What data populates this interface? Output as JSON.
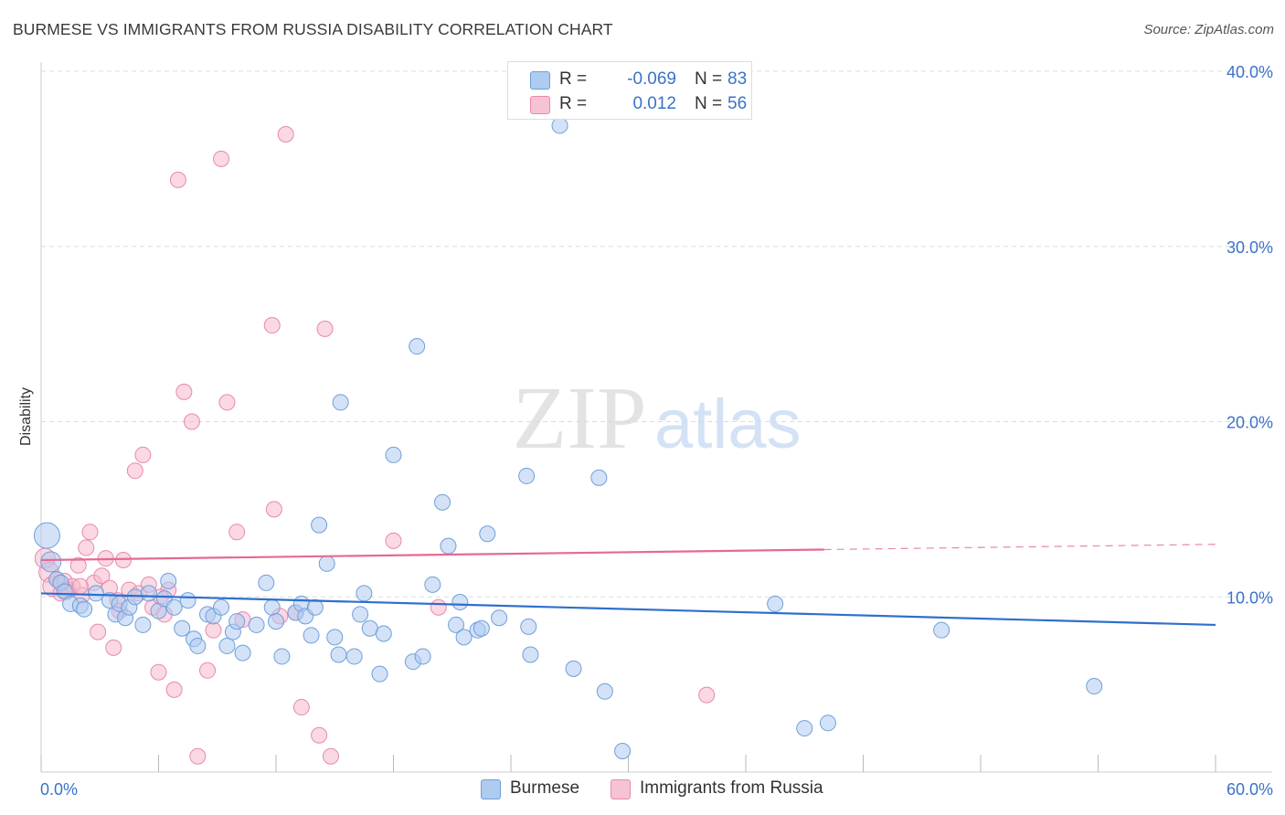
{
  "title": "BURMESE VS IMMIGRANTS FROM RUSSIA DISABILITY CORRELATION CHART",
  "source": "Source: ZipAtlas.com",
  "watermark": {
    "zip": "ZIP",
    "atlas": "atlas"
  },
  "colors": {
    "blue_fill": "#aecbf0",
    "blue_stroke": "#6f9fdb",
    "blue_line": "#2f6fcc",
    "pink_fill": "#f6b8cd",
    "pink_stroke": "#e88aaa",
    "pink_line": "#e46a93",
    "grid": "#dcdcdc",
    "axis_label": "#3b72c8"
  },
  "legend_top": {
    "rows": [
      {
        "series": "blue",
        "r_label": "R =",
        "r_value": "-0.069",
        "n_label": "N =",
        "n_value": "83"
      },
      {
        "series": "pink",
        "r_label": "R =",
        "r_value": "0.012",
        "n_label": "N =",
        "n_value": "56"
      }
    ]
  },
  "legend_bottom": {
    "items": [
      {
        "series": "blue",
        "label": "Burmese"
      },
      {
        "series": "pink",
        "label": "Immigrants from Russia"
      }
    ]
  },
  "chart_data": {
    "type": "scatter",
    "title": "BURMESE VS IMMIGRANTS FROM RUSSIA DISABILITY CORRELATION CHART",
    "xlabel": "",
    "ylabel": "Disability",
    "xlim": [
      0,
      60
    ],
    "ylim": [
      0,
      40
    ],
    "x_tick_labels": [
      "0.0%",
      "60.0%"
    ],
    "y_tick_labels": [
      "10.0%",
      "20.0%",
      "30.0%",
      "40.0%"
    ],
    "y_ticks": [
      10,
      20,
      30,
      40
    ],
    "x_minor_ticks": [
      0,
      6,
      12,
      18,
      24,
      30,
      36,
      42,
      48,
      54,
      60
    ],
    "grid": true,
    "series": [
      {
        "name": "Burmese",
        "color": "blue",
        "trend": {
          "x0": 0,
          "y0": 10.2,
          "x1": 60,
          "y1": 8.4,
          "dashed_from": null
        },
        "points": [
          [
            0.3,
            13.5,
            3
          ],
          [
            0.5,
            12.0,
            2
          ],
          [
            0.8,
            11.0,
            1
          ],
          [
            1.0,
            10.8,
            1
          ],
          [
            1.2,
            10.3,
            1
          ],
          [
            1.5,
            9.6,
            1
          ],
          [
            2.0,
            9.5,
            1
          ],
          [
            2.2,
            9.3,
            1
          ],
          [
            2.8,
            10.2,
            1
          ],
          [
            3.5,
            9.8,
            1
          ],
          [
            3.8,
            9.0,
            1
          ],
          [
            4.0,
            9.6,
            1
          ],
          [
            4.3,
            8.8,
            1
          ],
          [
            4.5,
            9.4,
            1
          ],
          [
            4.8,
            10.0,
            1
          ],
          [
            5.2,
            8.4,
            1
          ],
          [
            5.5,
            10.2,
            1
          ],
          [
            6.0,
            9.2,
            1
          ],
          [
            6.3,
            9.9,
            1
          ],
          [
            6.5,
            10.9,
            1
          ],
          [
            6.8,
            9.4,
            1
          ],
          [
            7.2,
            8.2,
            1
          ],
          [
            7.5,
            9.8,
            1
          ],
          [
            7.8,
            7.6,
            1
          ],
          [
            8.0,
            7.2,
            1
          ],
          [
            8.5,
            9.0,
            1
          ],
          [
            8.8,
            8.9,
            1
          ],
          [
            9.2,
            9.4,
            1
          ],
          [
            9.5,
            7.2,
            1
          ],
          [
            9.8,
            8.0,
            1
          ],
          [
            10.0,
            8.6,
            1
          ],
          [
            10.3,
            6.8,
            1
          ],
          [
            11.0,
            8.4,
            1
          ],
          [
            11.5,
            10.8,
            1
          ],
          [
            11.8,
            9.4,
            1
          ],
          [
            12.0,
            8.6,
            1
          ],
          [
            12.3,
            6.6,
            1
          ],
          [
            13.0,
            9.1,
            1
          ],
          [
            13.3,
            9.6,
            1
          ],
          [
            13.5,
            8.9,
            1
          ],
          [
            13.8,
            7.8,
            1
          ],
          [
            14.0,
            9.4,
            1
          ],
          [
            14.2,
            14.1,
            1
          ],
          [
            14.6,
            11.9,
            1
          ],
          [
            15.0,
            7.7,
            1
          ],
          [
            15.2,
            6.7,
            1
          ],
          [
            15.3,
            21.1,
            1
          ],
          [
            16.0,
            6.6,
            1
          ],
          [
            16.3,
            9.0,
            1
          ],
          [
            16.5,
            10.2,
            1
          ],
          [
            16.8,
            8.2,
            1
          ],
          [
            17.3,
            5.6,
            1
          ],
          [
            17.5,
            7.9,
            1
          ],
          [
            18.0,
            18.1,
            1
          ],
          [
            19.0,
            6.3,
            1
          ],
          [
            19.2,
            24.3,
            1
          ],
          [
            19.5,
            6.6,
            1
          ],
          [
            20.0,
            10.7,
            1
          ],
          [
            20.5,
            15.4,
            1
          ],
          [
            20.8,
            12.9,
            1
          ],
          [
            21.2,
            8.4,
            1
          ],
          [
            21.4,
            9.7,
            1
          ],
          [
            21.6,
            7.7,
            1
          ],
          [
            22.3,
            8.1,
            1
          ],
          [
            22.5,
            8.2,
            1
          ],
          [
            22.8,
            13.6,
            1
          ],
          [
            23.4,
            8.8,
            1
          ],
          [
            24.8,
            16.9,
            1
          ],
          [
            24.9,
            8.3,
            1
          ],
          [
            25.0,
            6.7,
            1
          ],
          [
            26.5,
            36.9,
            1
          ],
          [
            27.2,
            5.9,
            1
          ],
          [
            28.5,
            16.8,
            1
          ],
          [
            28.8,
            4.6,
            1
          ],
          [
            29.7,
            1.2,
            1
          ],
          [
            37.5,
            9.6,
            1
          ],
          [
            39.0,
            2.5,
            1
          ],
          [
            40.2,
            2.8,
            1
          ],
          [
            46.0,
            8.1,
            1
          ],
          [
            53.8,
            4.9,
            1
          ]
        ]
      },
      {
        "name": "Immigrants from Russia",
        "color": "pink",
        "trend": {
          "x0": 0,
          "y0": 12.1,
          "x1": 60,
          "y1": 13.0,
          "dashed_from": 40
        },
        "points": [
          [
            0.2,
            12.2,
            2
          ],
          [
            0.4,
            11.4,
            2
          ],
          [
            0.6,
            10.6,
            2
          ],
          [
            0.8,
            11.0,
            1
          ],
          [
            1.0,
            10.2,
            1
          ],
          [
            1.2,
            10.9,
            1
          ],
          [
            1.4,
            10.4,
            1
          ],
          [
            1.6,
            10.6,
            1
          ],
          [
            1.9,
            11.8,
            1
          ],
          [
            2.1,
            10.1,
            1
          ],
          [
            2.3,
            12.8,
            1
          ],
          [
            2.5,
            13.7,
            1
          ],
          [
            2.7,
            10.8,
            1
          ],
          [
            2.9,
            8.0,
            1
          ],
          [
            3.1,
            11.2,
            1
          ],
          [
            3.3,
            12.2,
            1
          ],
          [
            3.5,
            10.5,
            1
          ],
          [
            3.7,
            7.1,
            1
          ],
          [
            3.9,
            9.8,
            1
          ],
          [
            4.2,
            12.1,
            1
          ],
          [
            4.5,
            10.4,
            1
          ],
          [
            4.8,
            17.2,
            1
          ],
          [
            5.0,
            10.2,
            1
          ],
          [
            5.2,
            18.1,
            1
          ],
          [
            5.5,
            10.7,
            1
          ],
          [
            5.7,
            9.4,
            1
          ],
          [
            6.0,
            5.7,
            1
          ],
          [
            6.3,
            9.0,
            1
          ],
          [
            6.5,
            10.4,
            1
          ],
          [
            6.8,
            4.7,
            1
          ],
          [
            7.0,
            33.8,
            1
          ],
          [
            7.3,
            21.7,
            1
          ],
          [
            7.7,
            20.0,
            1
          ],
          [
            8.0,
            0.9,
            1
          ],
          [
            8.5,
            5.8,
            1
          ],
          [
            8.8,
            8.1,
            1
          ],
          [
            9.2,
            35.0,
            1
          ],
          [
            9.5,
            21.1,
            1
          ],
          [
            10.0,
            13.7,
            1
          ],
          [
            10.3,
            8.7,
            1
          ],
          [
            11.8,
            25.5,
            1
          ],
          [
            11.9,
            15.0,
            1
          ],
          [
            12.2,
            8.9,
            1
          ],
          [
            12.5,
            36.4,
            1
          ],
          [
            13.0,
            9.1,
            1
          ],
          [
            13.3,
            3.7,
            1
          ],
          [
            14.2,
            2.1,
            1
          ],
          [
            14.5,
            25.3,
            1
          ],
          [
            14.8,
            0.9,
            1
          ],
          [
            18.0,
            13.2,
            1
          ],
          [
            20.3,
            9.4,
            1
          ],
          [
            34.0,
            4.4,
            1
          ],
          [
            4.0,
            9.2,
            1
          ],
          [
            6.1,
            10.0,
            1
          ],
          [
            2.0,
            10.6,
            1
          ],
          [
            1.3,
            10.3,
            1
          ]
        ]
      }
    ]
  }
}
